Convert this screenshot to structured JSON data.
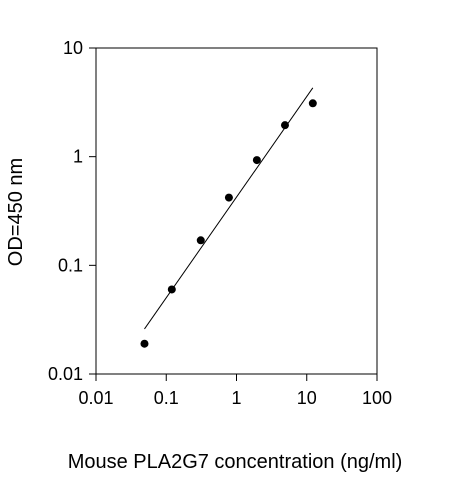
{
  "chart_data": {
    "type": "scatter",
    "title": "",
    "xlabel": "Mouse PLA2G7 concentration (ng/ml)",
    "ylabel": "OD=450 nm",
    "x_scale": "log",
    "y_scale": "log",
    "xlim": [
      0.01,
      100
    ],
    "ylim": [
      0.01,
      10
    ],
    "x_ticks": [
      {
        "value": 0.01,
        "label": "0.01"
      },
      {
        "value": 0.1,
        "label": "0.1"
      },
      {
        "value": 1,
        "label": "1"
      },
      {
        "value": 10,
        "label": "10"
      },
      {
        "value": 100,
        "label": "100"
      }
    ],
    "y_ticks": [
      {
        "value": 0.01,
        "label": "0.01"
      },
      {
        "value": 0.1,
        "label": "0.1"
      },
      {
        "value": 1,
        "label": "1"
      },
      {
        "value": 10,
        "label": "10"
      }
    ],
    "grid": false,
    "legend": "none",
    "series": [
      {
        "points": [
          {
            "x": 0.049,
            "y": 0.019
          },
          {
            "x": 0.12,
            "y": 0.06
          },
          {
            "x": 0.31,
            "y": 0.17
          },
          {
            "x": 0.78,
            "y": 0.42
          },
          {
            "x": 1.95,
            "y": 0.93
          },
          {
            "x": 4.9,
            "y": 1.95
          },
          {
            "x": 12.2,
            "y": 3.1
          }
        ]
      }
    ],
    "fit_line": {
      "from": {
        "x": 0.049,
        "y": 0.026
      },
      "to": {
        "x": 12.2,
        "y": 4.3
      }
    },
    "colors": {
      "marker": "#000000",
      "line": "#000000",
      "axis": "#000000"
    }
  }
}
